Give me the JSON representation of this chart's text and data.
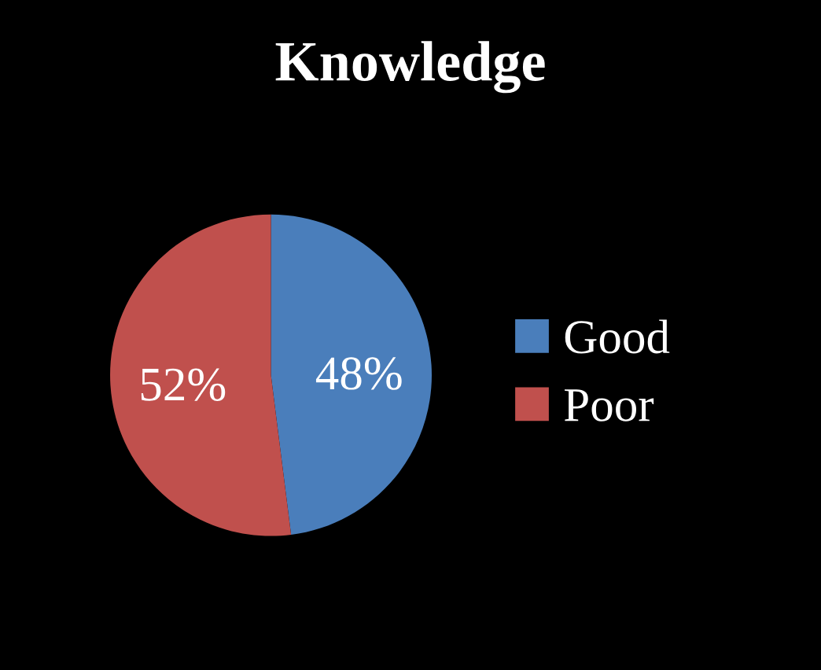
{
  "chart_data": {
    "type": "pie",
    "title": "Knowledge",
    "categories": [
      "Good",
      "Poor"
    ],
    "values": [
      48,
      52
    ],
    "colors": [
      "#4a7ebb",
      "#c0504d"
    ],
    "value_labels": [
      "48%",
      "52%"
    ],
    "legend": "right"
  }
}
